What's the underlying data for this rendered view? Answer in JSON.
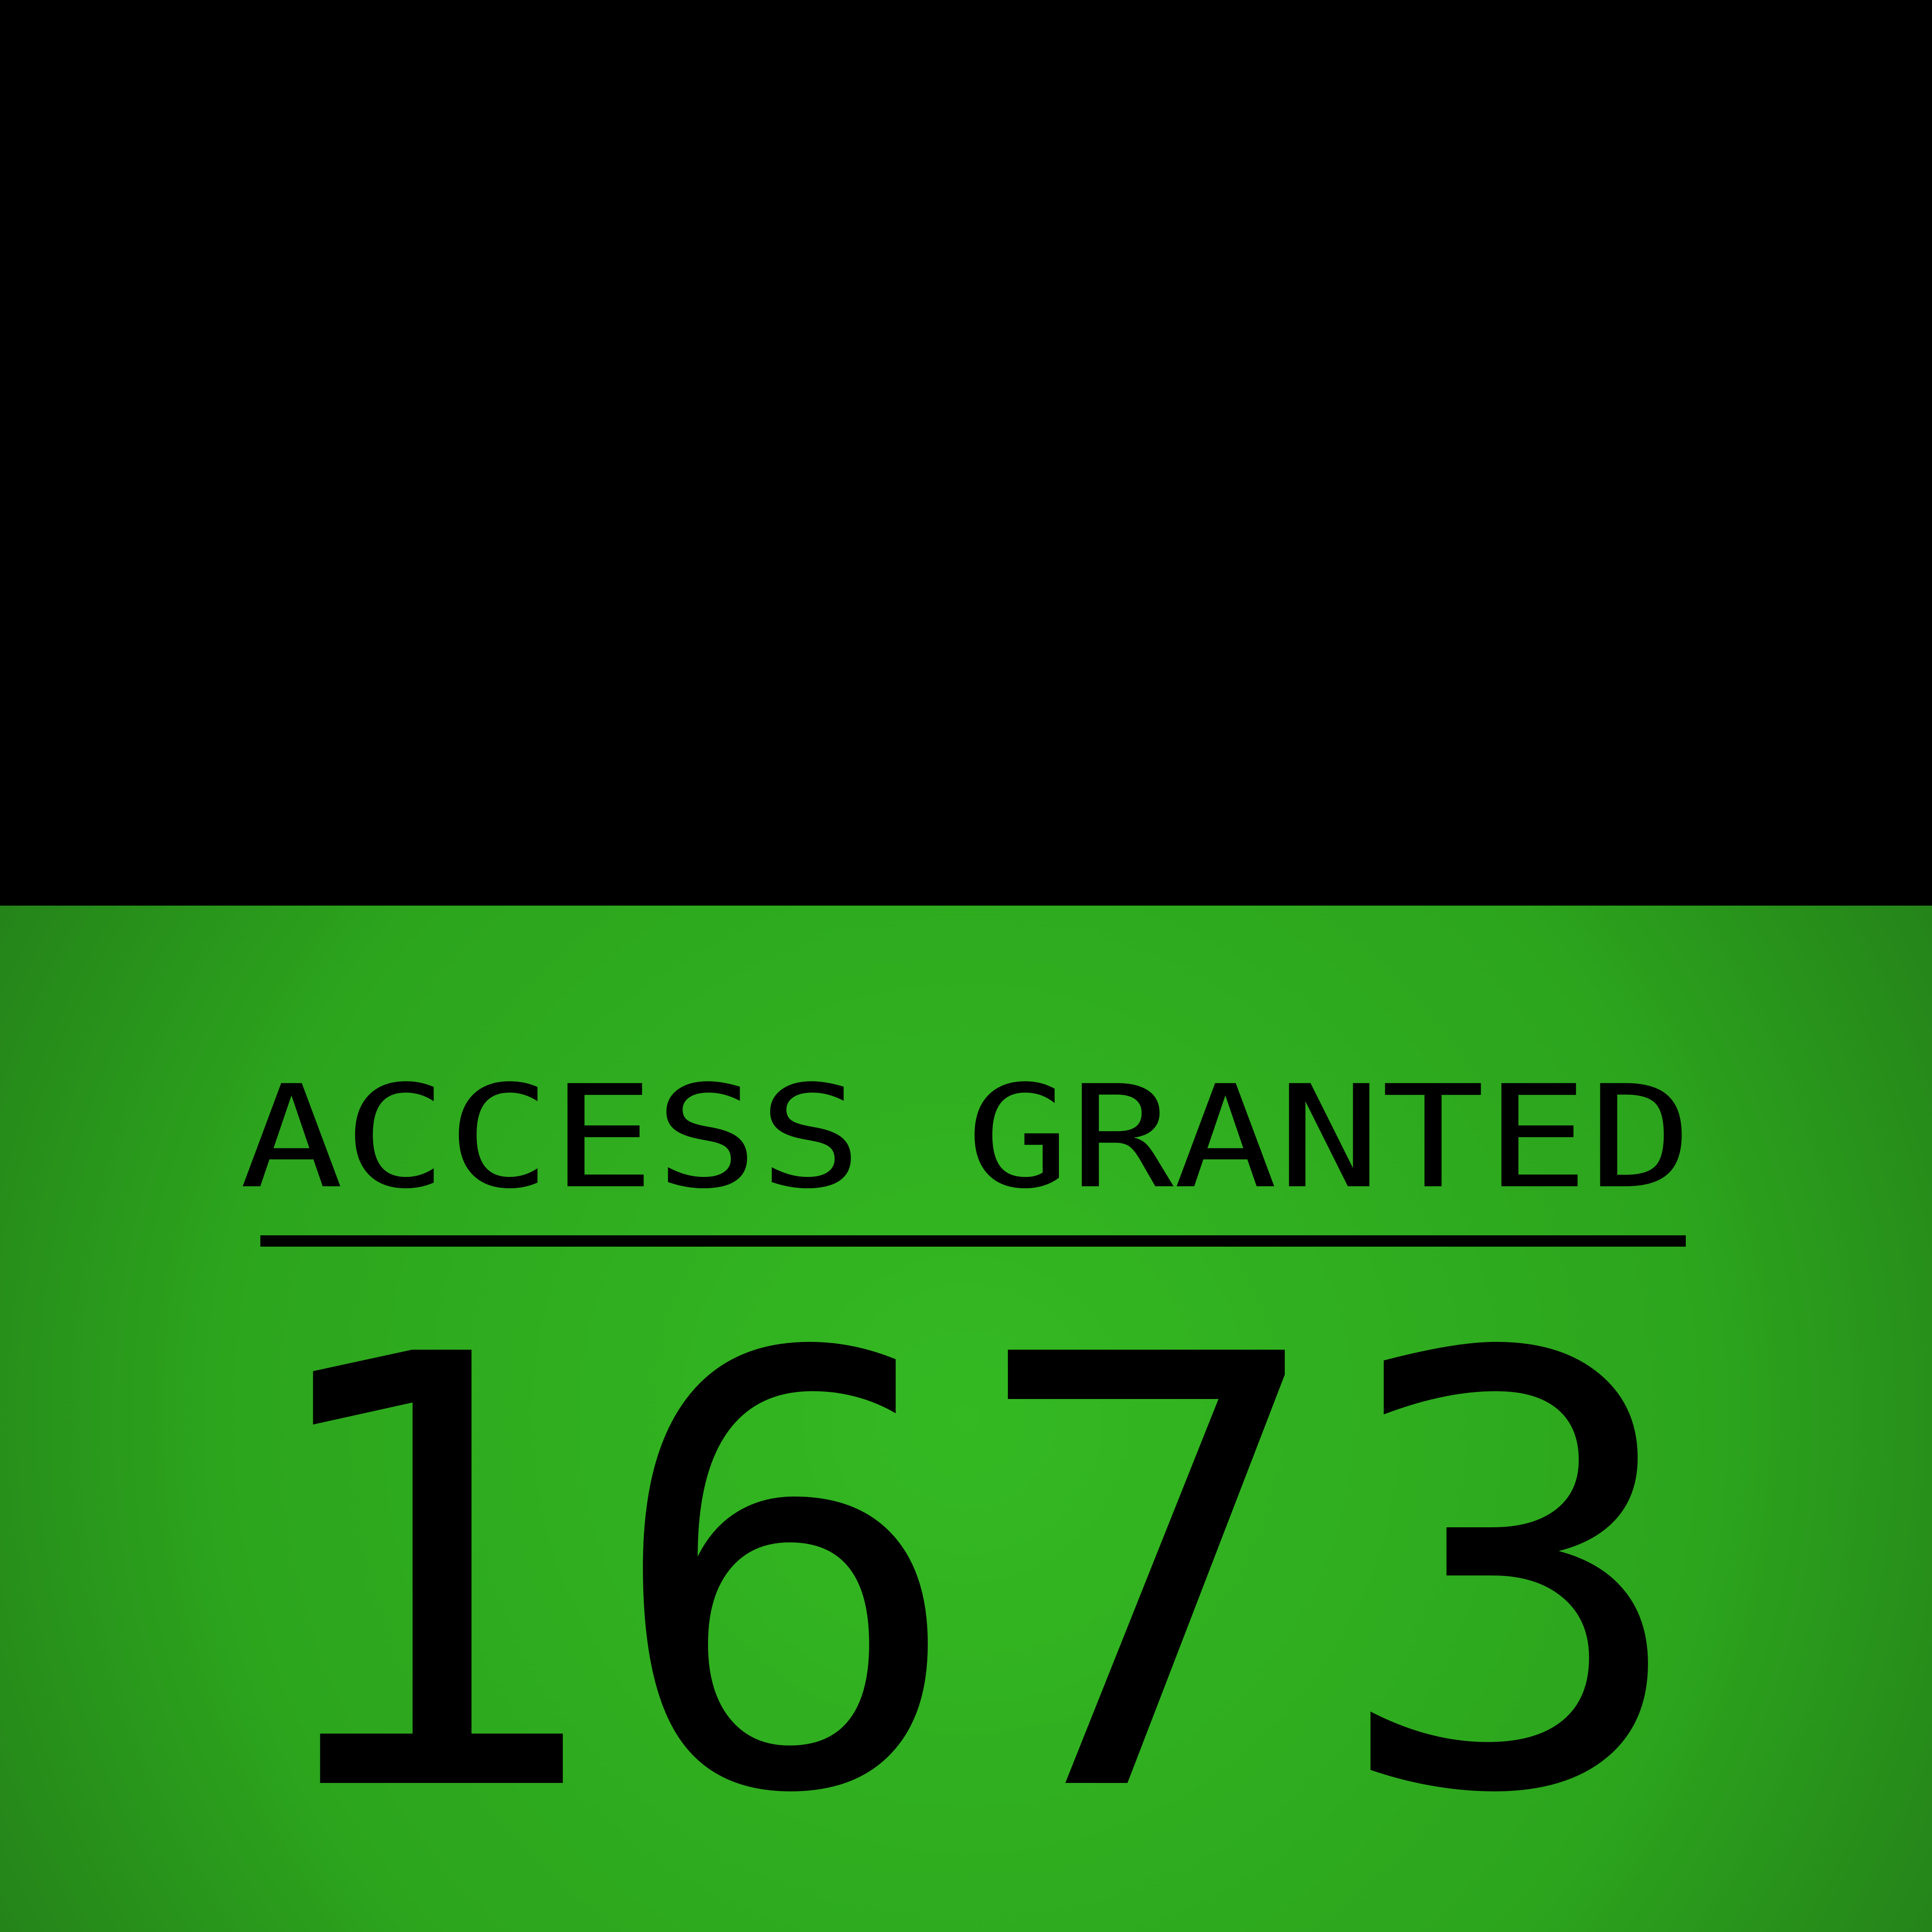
{
  "status": {
    "message": "ACCESS GRANTED",
    "code": "1673"
  },
  "colors": {
    "top_background": "#000000",
    "panel_green_center": "#34b922",
    "panel_green_edge": "#227918",
    "text": "#000000"
  }
}
